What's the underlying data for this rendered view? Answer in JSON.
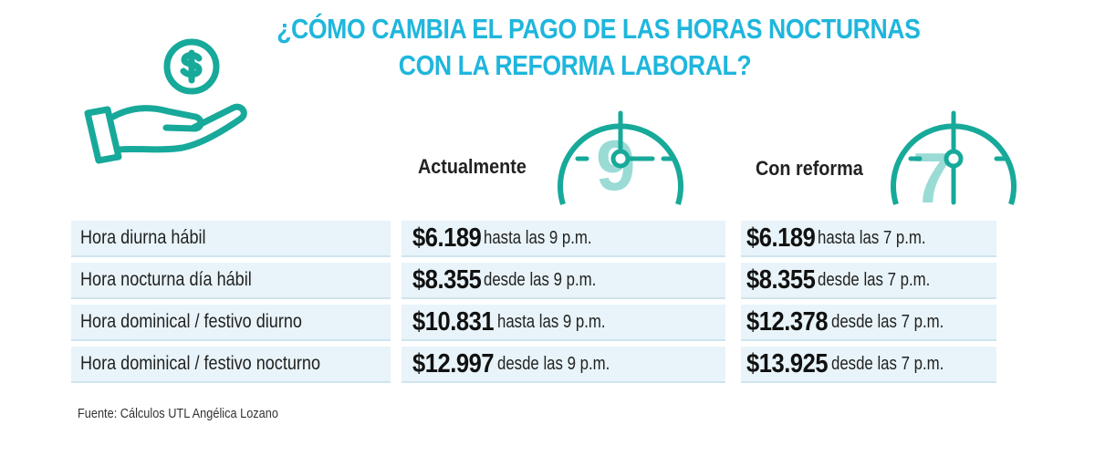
{
  "title": {
    "line1": "¿CÓMO CAMBIA EL PAGO DE LAS HORAS NOCTURNAS",
    "line2": "CON LA REFORMA LABORAL?"
  },
  "icons": {
    "hand": "hand-holding-dollar-icon",
    "clock_current": "clock-9-icon",
    "clock_reform": "clock-7-icon"
  },
  "columns": {
    "current": "Actualmente",
    "reform": "Con reforma",
    "current_clock_digit": "9",
    "reform_clock_digit": "7"
  },
  "rows": [
    {
      "label": "Hora diurna hábil",
      "current_amount": "$6.189",
      "current_note": "hasta las 9 p.m.",
      "reform_amount": "$6.189",
      "reform_note": "hasta las 7 p.m."
    },
    {
      "label": "Hora nocturna día hábil",
      "current_amount": "$8.355",
      "current_note": "desde las 9 p.m.",
      "reform_amount": "$8.355",
      "reform_note": "desde las 7 p.m."
    },
    {
      "label": "Hora dominical / festivo diurno",
      "current_amount": "$10.831",
      "current_note": "hasta las 9 p.m.",
      "reform_amount": "$12.378",
      "reform_note": "desde las 7 p.m."
    },
    {
      "label": "Hora dominical / festivo nocturno",
      "current_amount": "$12.997",
      "current_note": "desde las 9 p.m.",
      "reform_amount": "$13.925",
      "reform_note": "desde las 7 p.m."
    }
  ],
  "source": "Fuente: Cálculos UTL Angélica Lozano",
  "colors": {
    "accent": "#1fb6dc",
    "teal": "#17a99a",
    "row_fill": "#e8f4f9"
  }
}
